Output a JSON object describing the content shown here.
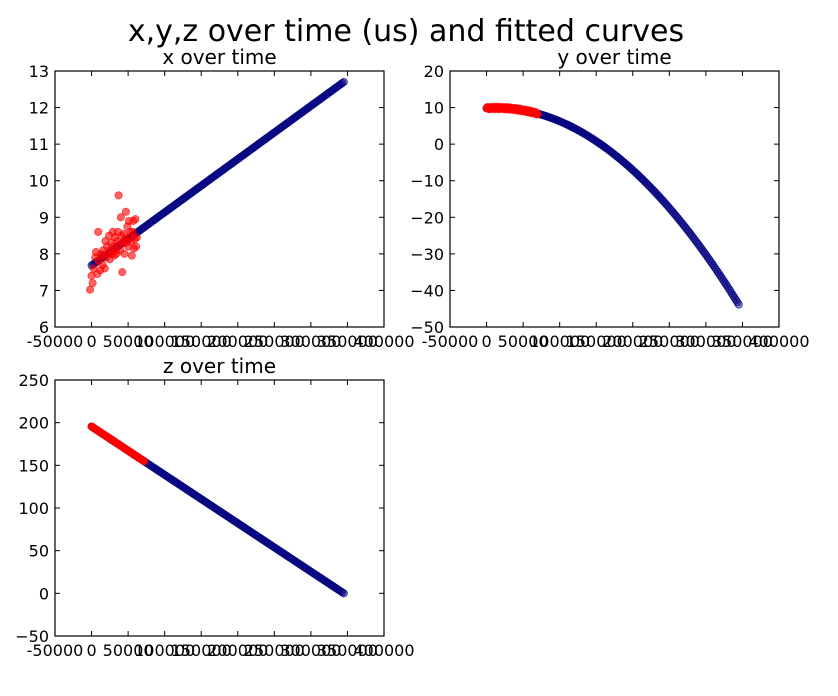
{
  "figure": {
    "title": "x,y,z over time (us) and fitted curves"
  },
  "colors": {
    "observed": "#ff0000",
    "fitted": "#00007f",
    "axes": "#000000"
  },
  "chart_data": [
    {
      "type": "scatter",
      "title": "x over time",
      "xlabel": "",
      "ylabel": "",
      "xlim": [
        -50000,
        400000
      ],
      "ylim": [
        6,
        13
      ],
      "xticks": [
        -50000,
        0,
        50000,
        100000,
        150000,
        200000,
        250000,
        300000,
        350000,
        400000
      ],
      "yticks": [
        6,
        7,
        8,
        9,
        10,
        11,
        12,
        13
      ],
      "xtick_labels": [
        "-50000",
        "0",
        "50000",
        "100000",
        "150000",
        "200000",
        "250000",
        "300000",
        "350000",
        "400000"
      ],
      "ytick_labels": [
        "6",
        "7",
        "8",
        "9",
        "10",
        "11",
        "12",
        "13"
      ],
      "grid": false,
      "series": [
        {
          "role": "fitted",
          "color": "#00007f",
          "alpha": 0.6,
          "x": [
            0,
            345000
          ],
          "y": [
            7.68,
            12.7
          ],
          "fit": "linear",
          "n_points": 180
        },
        {
          "role": "observed",
          "color": "#ff0000",
          "alpha": 0.6,
          "points": [
            [
              -2000,
              7.02
            ],
            [
              0,
              7.4
            ],
            [
              1500,
              7.2
            ],
            [
              3000,
              7.6
            ],
            [
              5000,
              7.9
            ],
            [
              6000,
              8.05
            ],
            [
              8000,
              7.45
            ],
            [
              9000,
              8.6
            ],
            [
              10000,
              7.8
            ],
            [
              12000,
              7.55
            ],
            [
              13000,
              8.0
            ],
            [
              14000,
              7.95
            ],
            [
              15000,
              7.7
            ],
            [
              16000,
              8.1
            ],
            [
              18000,
              7.6
            ],
            [
              19000,
              8.35
            ],
            [
              20000,
              7.9
            ],
            [
              21000,
              8.2
            ],
            [
              23000,
              8.0
            ],
            [
              24000,
              8.5
            ],
            [
              25000,
              7.85
            ],
            [
              26000,
              8.1
            ],
            [
              27000,
              8.3
            ],
            [
              28000,
              8.0
            ],
            [
              29000,
              8.6
            ],
            [
              30000,
              8.2
            ],
            [
              31000,
              7.95
            ],
            [
              32000,
              8.45
            ],
            [
              33000,
              8.1
            ],
            [
              34000,
              8.0
            ],
            [
              35000,
              8.35
            ],
            [
              36000,
              8.6
            ],
            [
              37000,
              9.6
            ],
            [
              38000,
              8.25
            ],
            [
              39000,
              8.1
            ],
            [
              40000,
              9.0
            ],
            [
              41000,
              8.5
            ],
            [
              42000,
              7.5
            ],
            [
              43000,
              8.3
            ],
            [
              44000,
              8.55
            ],
            [
              45000,
              8.0
            ],
            [
              46000,
              8.4
            ],
            [
              47000,
              9.15
            ],
            [
              48000,
              8.3
            ],
            [
              49000,
              8.75
            ],
            [
              50000,
              8.2
            ],
            [
              51000,
              8.9
            ],
            [
              52000,
              8.45
            ],
            [
              53000,
              8.6
            ],
            [
              54000,
              8.35
            ],
            [
              55000,
              7.95
            ],
            [
              56000,
              8.6
            ],
            [
              57000,
              8.9
            ],
            [
              58000,
              8.15
            ],
            [
              59000,
              8.4
            ],
            [
              60000,
              8.95
            ],
            [
              61000,
              8.2
            ],
            [
              62000,
              8.45
            ]
          ]
        }
      ]
    },
    {
      "type": "scatter",
      "title": "y over time",
      "xlabel": "",
      "ylabel": "",
      "xlim": [
        -50000,
        400000
      ],
      "ylim": [
        -50,
        20
      ],
      "xticks": [
        -50000,
        0,
        50000,
        100000,
        150000,
        200000,
        250000,
        300000,
        350000,
        400000
      ],
      "yticks": [
        -50,
        -40,
        -30,
        -20,
        -10,
        0,
        10,
        20
      ],
      "xtick_labels": [
        "-50000",
        "0",
        "50000",
        "100000",
        "150000",
        "200000",
        "250000",
        "300000",
        "350000",
        "400000"
      ],
      "ytick_labels": [
        "−50",
        "−40",
        "−30",
        "−20",
        "−10",
        "0",
        "10",
        "20"
      ],
      "grid": false,
      "series": [
        {
          "role": "fitted",
          "color": "#00007f",
          "alpha": 0.6,
          "x": [
            0,
            345000
          ],
          "coeffs": [
            9.8,
            1.35e-05,
            -4.9e-10
          ],
          "fit": "quadratic",
          "n_points": 180
        },
        {
          "role": "observed",
          "color": "#ff0000",
          "alpha": 0.8,
          "x_range": [
            0,
            70000
          ],
          "n_points": 60,
          "fit_offset": 0.35
        }
      ]
    },
    {
      "type": "scatter",
      "title": "z over time",
      "xlabel": "",
      "ylabel": "",
      "xlim": [
        -50000,
        400000
      ],
      "ylim": [
        -50,
        250
      ],
      "xticks": [
        -50000,
        0,
        50000,
        100000,
        150000,
        200000,
        250000,
        300000,
        350000,
        400000
      ],
      "yticks": [
        -50,
        0,
        50,
        100,
        150,
        200,
        250
      ],
      "xtick_labels": [
        "-50000",
        "0",
        "50000",
        "100000",
        "150000",
        "200000",
        "250000",
        "300000",
        "350000",
        "400000"
      ],
      "ytick_labels": [
        "−50",
        "0",
        "50",
        "100",
        "150",
        "200",
        "250"
      ],
      "grid": false,
      "series": [
        {
          "role": "fitted",
          "color": "#00007f",
          "alpha": 0.6,
          "x": [
            0,
            345000
          ],
          "y": [
            195.5,
            0.0
          ],
          "fit": "linear",
          "n_points": 180
        },
        {
          "role": "observed",
          "color": "#ff0000",
          "alpha": 0.85,
          "x_range": [
            0,
            72000
          ],
          "n_points": 70,
          "fit_offset": 0
        }
      ]
    }
  ]
}
